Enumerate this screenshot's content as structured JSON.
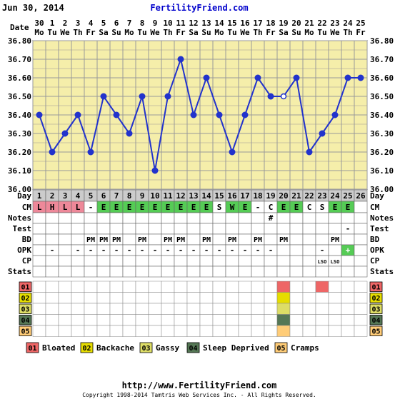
{
  "header": {
    "date": "Jun 30, 2014",
    "site": "FertilityFriend.com"
  },
  "labels": {
    "date": "Date",
    "day": "Day",
    "cm": "CM",
    "notes": "Notes",
    "test": "Test",
    "bd": "BD",
    "opk": "OPK",
    "cp": "CP",
    "stats": "Stats"
  },
  "footer": {
    "url": "http://www.FertilityFriend.com",
    "copyright": "Copyright 1998-2014 Tamtris Web Services Inc. - All Rights Reserved."
  },
  "colors": {
    "chart_bg": "#f5eeaa",
    "line": "#2233cc",
    "fertile_cm": "#55cc55",
    "period": "#ee8899",
    "day_header": "#cccccc",
    "cover_highlight": "#d9d9d9",
    "opk_positive": "#55cc55"
  },
  "chart_data": {
    "type": "line",
    "title": "",
    "xlabel": "Day",
    "ylabel": "",
    "ylim": [
      36.0,
      36.8
    ],
    "yticks": [
      "36.00",
      "36.10",
      "36.20",
      "36.30",
      "36.40",
      "36.50",
      "36.60",
      "36.70",
      "36.80"
    ],
    "dates": [
      {
        "d": "30",
        "w": "Mo"
      },
      {
        "d": "1",
        "w": "Tu"
      },
      {
        "d": "2",
        "w": "We"
      },
      {
        "d": "3",
        "w": "Th"
      },
      {
        "d": "4",
        "w": "Fr"
      },
      {
        "d": "5",
        "w": "Sa"
      },
      {
        "d": "6",
        "w": "Su"
      },
      {
        "d": "7",
        "w": "Mo"
      },
      {
        "d": "8",
        "w": "Tu"
      },
      {
        "d": "9",
        "w": "We"
      },
      {
        "d": "10",
        "w": "Th"
      },
      {
        "d": "11",
        "w": "Fr"
      },
      {
        "d": "12",
        "w": "Sa"
      },
      {
        "d": "13",
        "w": "Su"
      },
      {
        "d": "14",
        "w": "Mo"
      },
      {
        "d": "15",
        "w": "Tu"
      },
      {
        "d": "16",
        "w": "We"
      },
      {
        "d": "17",
        "w": "Th"
      },
      {
        "d": "18",
        "w": "Fr"
      },
      {
        "d": "19",
        "w": "Sa"
      },
      {
        "d": "20",
        "w": "Su"
      },
      {
        "d": "21",
        "w": "Mo"
      },
      {
        "d": "22",
        "w": "Tu"
      },
      {
        "d": "23",
        "w": "We"
      },
      {
        "d": "24",
        "w": "Th"
      },
      {
        "d": "25",
        "w": "Fr"
      }
    ],
    "days": [
      "1",
      "2",
      "3",
      "4",
      "5",
      "6",
      "7",
      "8",
      "9",
      "10",
      "11",
      "12",
      "13",
      "14",
      "15",
      "16",
      "17",
      "18",
      "19",
      "20",
      "21",
      "22",
      "23",
      "24",
      "25",
      "26"
    ],
    "temps": [
      36.4,
      36.2,
      36.3,
      36.4,
      36.2,
      36.5,
      36.4,
      36.3,
      36.5,
      36.1,
      36.5,
      36.7,
      36.4,
      36.6,
      36.4,
      36.2,
      36.4,
      36.6,
      36.5,
      36.5,
      36.6,
      36.2,
      36.3,
      36.4,
      36.6,
      36.6
    ],
    "open_points": [
      19
    ],
    "cm": [
      "L",
      "H",
      "L",
      "L",
      "-",
      "E",
      "E",
      "E",
      "E",
      "E",
      "E",
      "E",
      "E",
      "E",
      "S",
      "W",
      "E",
      "-",
      "C",
      "E",
      "E",
      "C",
      "S",
      "E",
      "E",
      ""
    ],
    "notes": [
      "",
      "",
      "",
      "",
      "",
      "",
      "",
      "",
      "",
      "",
      "",
      "",
      "",
      "",
      "",
      "",
      "",
      "",
      "#",
      "",
      "",
      "",
      "",
      "",
      "",
      ""
    ],
    "test": [
      "",
      "",
      "",
      "",
      "",
      "",
      "",
      "",
      "",
      "",
      "",
      "",
      "",
      "",
      "",
      "",
      "",
      "",
      "",
      "",
      "",
      "",
      "",
      "",
      "-",
      ""
    ],
    "bd": [
      "",
      "",
      "",
      "",
      "PM",
      "PM",
      "PM",
      "",
      "PM",
      "",
      "PM",
      "PM",
      "",
      "PM",
      "",
      "PM",
      "",
      "PM",
      "",
      "PM",
      "",
      "",
      "",
      "PM",
      "",
      ""
    ],
    "opk": [
      "",
      "-",
      "",
      "-",
      "-",
      "-",
      "-",
      "-",
      "-",
      "-",
      "-",
      "-",
      "-",
      "-",
      "-",
      "-",
      "-",
      "-",
      "-",
      "",
      "",
      "",
      "-",
      "",
      "+",
      ""
    ],
    "cp": [
      "",
      "",
      "",
      "",
      "",
      "",
      "",
      "",
      "",
      "",
      "",
      "",
      "",
      "",
      "",
      "",
      "",
      "",
      "",
      "",
      "",
      "",
      "LSO",
      "LSO",
      "",
      ""
    ],
    "stats": [
      {
        "code": "01",
        "name": "Bloated",
        "color": "#ee6666",
        "days": [
          19,
          22
        ]
      },
      {
        "code": "02",
        "name": "Backache",
        "color": "#e6dd00",
        "days": [
          19
        ]
      },
      {
        "code": "03",
        "name": "Gassy",
        "color": "#dddd66",
        "days": [
          19
        ]
      },
      {
        "code": "04",
        "name": "Sleep Deprived",
        "color": "#557755",
        "days": [
          19
        ]
      },
      {
        "code": "05",
        "name": "Cramps",
        "color": "#ffcc77",
        "days": [
          19
        ]
      }
    ]
  }
}
